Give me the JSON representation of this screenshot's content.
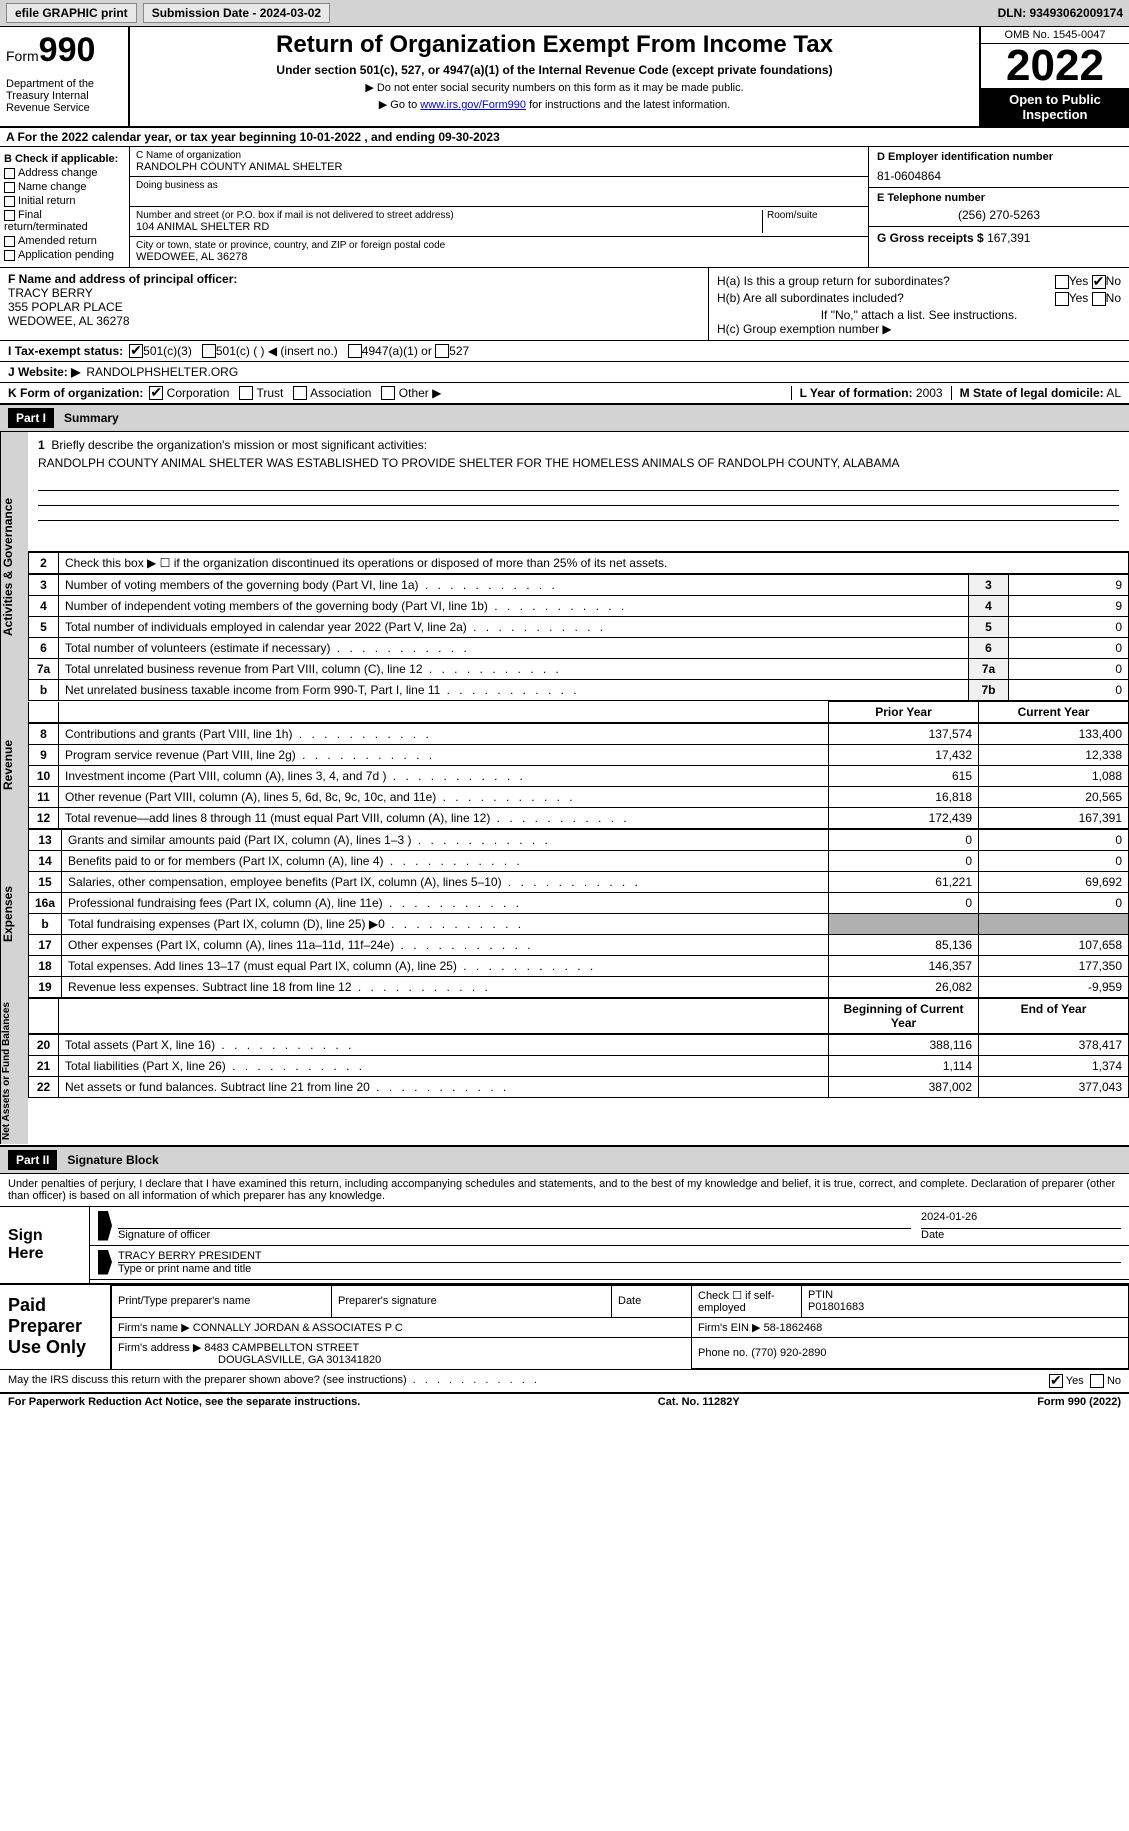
{
  "topbar": {
    "efile": "efile GRAPHIC print",
    "submission": "Submission Date - 2024-03-02",
    "dln": "DLN: 93493062009174"
  },
  "header": {
    "form_label": "Form",
    "form_num": "990",
    "dept": "Department of the Treasury Internal Revenue Service",
    "title": "Return of Organization Exempt From Income Tax",
    "subtitle": "Under section 501(c), 527, or 4947(a)(1) of the Internal Revenue Code (except private foundations)",
    "note1": "▶ Do not enter social security numbers on this form as it may be made public.",
    "note2_pre": "▶ Go to ",
    "note2_link": "www.irs.gov/Form990",
    "note2_post": " for instructions and the latest information.",
    "omb": "OMB No. 1545-0047",
    "year": "2022",
    "open": "Open to Public Inspection"
  },
  "row_a": {
    "text": "A For the 2022 calendar year, or tax year beginning 10-01-2022    , and ending 09-30-2023"
  },
  "col_b": {
    "label": "B Check if applicable:",
    "items": [
      "Address change",
      "Name change",
      "Initial return",
      "Final return/terminated",
      "Amended return",
      "Application pending"
    ]
  },
  "col_c": {
    "name_label": "C Name of organization",
    "name": "RANDOLPH COUNTY ANIMAL SHELTER",
    "dba_label": "Doing business as",
    "addr_label": "Number and street (or P.O. box if mail is not delivered to street address)",
    "room_label": "Room/suite",
    "addr": "104 ANIMAL SHELTER RD",
    "city_label": "City or town, state or province, country, and ZIP or foreign postal code",
    "city": "WEDOWEE, AL  36278"
  },
  "col_d": {
    "ein_label": "D Employer identification number",
    "ein": "81-0604864",
    "phone_label": "E Telephone number",
    "phone": "(256) 270-5263",
    "gross_label": "G Gross receipts $",
    "gross": "167,391"
  },
  "section_f": {
    "label": "F  Name and address of principal officer:",
    "name": "TRACY BERRY",
    "addr1": "355 POPLAR PLACE",
    "addr2": "WEDOWEE, AL  36278"
  },
  "section_h": {
    "ha": "H(a)  Is this a group return for subordinates?",
    "hb": "H(b)  Are all subordinates included?",
    "hb_note": "If \"No,\" attach a list. See instructions.",
    "hc": "H(c)  Group exemption number ▶",
    "yes": "Yes",
    "no": "No"
  },
  "line_i": {
    "label": "I    Tax-exempt status:",
    "opt1": "501(c)(3)",
    "opt2": "501(c) (  ) ◀ (insert no.)",
    "opt3": "4947(a)(1) or",
    "opt4": "527"
  },
  "line_j": {
    "label": "J   Website: ▶",
    "value": "RANDOLPHSHELTER.ORG"
  },
  "line_k": {
    "label": "K Form of organization:",
    "opts": [
      "Corporation",
      "Trust",
      "Association",
      "Other ▶"
    ]
  },
  "line_l": {
    "label": "L Year of formation:",
    "value": "2003"
  },
  "line_m": {
    "label": "M State of legal domicile:",
    "value": "AL"
  },
  "part1": {
    "header": "Part I",
    "title": "Summary",
    "q1_label": "1",
    "q1": "Briefly describe the organization's mission or most significant activities:",
    "q1_text": "RANDOLPH COUNTY ANIMAL SHELTER WAS ESTABLISHED TO PROVIDE SHELTER FOR THE HOMELESS ANIMALS OF RANDOLPH COUNTY, ALABAMA",
    "q2": "Check this box ▶ ☐  if the organization discontinued its operations or disposed of more than 25% of its net assets.",
    "side_gov": "Activities & Governance",
    "side_rev": "Revenue",
    "side_exp": "Expenses",
    "side_net": "Net Assets or Fund Balances",
    "prior_hdr": "Prior Year",
    "current_hdr": "Current Year",
    "begin_hdr": "Beginning of Current Year",
    "end_hdr": "End of Year",
    "rows_gov": [
      {
        "n": "3",
        "d": "Number of voting members of the governing body (Part VI, line 1a)",
        "box": "3",
        "v": "9"
      },
      {
        "n": "4",
        "d": "Number of independent voting members of the governing body (Part VI, line 1b)",
        "box": "4",
        "v": "9"
      },
      {
        "n": "5",
        "d": "Total number of individuals employed in calendar year 2022 (Part V, line 2a)",
        "box": "5",
        "v": "0"
      },
      {
        "n": "6",
        "d": "Total number of volunteers (estimate if necessary)",
        "box": "6",
        "v": "0"
      },
      {
        "n": "7a",
        "d": "Total unrelated business revenue from Part VIII, column (C), line 12",
        "box": "7a",
        "v": "0"
      },
      {
        "n": "b",
        "d": "Net unrelated business taxable income from Form 990-T, Part I, line 11",
        "box": "7b",
        "v": "0"
      }
    ],
    "rows_rev": [
      {
        "n": "8",
        "d": "Contributions and grants (Part VIII, line 1h)",
        "p": "137,574",
        "c": "133,400"
      },
      {
        "n": "9",
        "d": "Program service revenue (Part VIII, line 2g)",
        "p": "17,432",
        "c": "12,338"
      },
      {
        "n": "10",
        "d": "Investment income (Part VIII, column (A), lines 3, 4, and 7d )",
        "p": "615",
        "c": "1,088"
      },
      {
        "n": "11",
        "d": "Other revenue (Part VIII, column (A), lines 5, 6d, 8c, 9c, 10c, and 11e)",
        "p": "16,818",
        "c": "20,565"
      },
      {
        "n": "12",
        "d": "Total revenue—add lines 8 through 11 (must equal Part VIII, column (A), line 12)",
        "p": "172,439",
        "c": "167,391"
      }
    ],
    "rows_exp": [
      {
        "n": "13",
        "d": "Grants and similar amounts paid (Part IX, column (A), lines 1–3 )",
        "p": "0",
        "c": "0"
      },
      {
        "n": "14",
        "d": "Benefits paid to or for members (Part IX, column (A), line 4)",
        "p": "0",
        "c": "0"
      },
      {
        "n": "15",
        "d": "Salaries, other compensation, employee benefits (Part IX, column (A), lines 5–10)",
        "p": "61,221",
        "c": "69,692"
      },
      {
        "n": "16a",
        "d": "Professional fundraising fees (Part IX, column (A), line 11e)",
        "p": "0",
        "c": "0"
      },
      {
        "n": "b",
        "d": "Total fundraising expenses (Part IX, column (D), line 25) ▶0",
        "p": "",
        "c": "",
        "shade": true
      },
      {
        "n": "17",
        "d": "Other expenses (Part IX, column (A), lines 11a–11d, 11f–24e)",
        "p": "85,136",
        "c": "107,658"
      },
      {
        "n": "18",
        "d": "Total expenses. Add lines 13–17 (must equal Part IX, column (A), line 25)",
        "p": "146,357",
        "c": "177,350"
      },
      {
        "n": "19",
        "d": "Revenue less expenses. Subtract line 18 from line 12",
        "p": "26,082",
        "c": "-9,959"
      }
    ],
    "rows_net": [
      {
        "n": "20",
        "d": "Total assets (Part X, line 16)",
        "p": "388,116",
        "c": "378,417"
      },
      {
        "n": "21",
        "d": "Total liabilities (Part X, line 26)",
        "p": "1,114",
        "c": "1,374"
      },
      {
        "n": "22",
        "d": "Net assets or fund balances. Subtract line 21 from line 20",
        "p": "387,002",
        "c": "377,043"
      }
    ]
  },
  "part2": {
    "header": "Part II",
    "title": "Signature Block",
    "declaration": "Under penalties of perjury, I declare that I have examined this return, including accompanying schedules and statements, and to the best of my knowledge and belief, it is true, correct, and complete. Declaration of preparer (other than officer) is based on all information of which preparer has any knowledge.",
    "sign_here": "Sign Here",
    "sig_officer": "Signature of officer",
    "date": "Date",
    "sig_date": "2024-01-26",
    "name_title": "TRACY BERRY PRESIDENT",
    "type_name": "Type or print name and title",
    "paid_prep": "Paid Preparer Use Only",
    "prep_name_label": "Print/Type preparer's name",
    "prep_sig_label": "Preparer's signature",
    "prep_date_label": "Date",
    "check_if": "Check ☐ if self-employed",
    "ptin_label": "PTIN",
    "ptin": "P01801683",
    "firm_name_label": "Firm's name    ▶",
    "firm_name": "CONNALLY JORDAN & ASSOCIATES P C",
    "firm_ein_label": "Firm's EIN ▶",
    "firm_ein": "58-1862468",
    "firm_addr_label": "Firm's address ▶",
    "firm_addr1": "8483 CAMPBELLTON STREET",
    "firm_addr2": "DOUGLASVILLE, GA  301341820",
    "phone_label": "Phone no.",
    "phone": "(770) 920-2890",
    "may_irs": "May the IRS discuss this return with the preparer shown above? (see instructions)",
    "yes": "Yes",
    "no": "No"
  },
  "footer": {
    "paperwork": "For Paperwork Reduction Act Notice, see the separate instructions.",
    "cat": "Cat. No. 11282Y",
    "form": "Form 990 (2022)"
  }
}
